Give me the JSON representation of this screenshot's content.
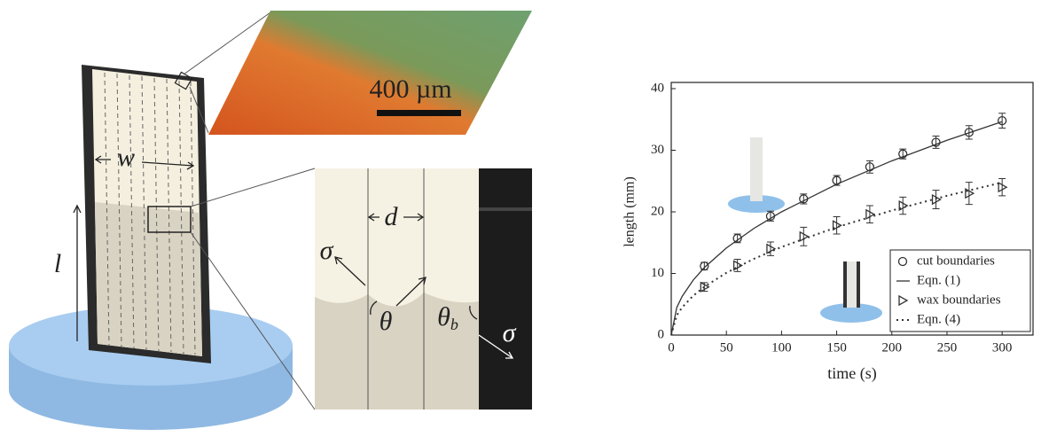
{
  "illustration": {
    "scale_bar": "400 µm",
    "w": "w",
    "l": "l",
    "d": "d",
    "sigma": [
      "σ",
      "σ"
    ],
    "theta": "θ",
    "theta_b": {
      "symbol": "θ",
      "subscript": "b"
    }
  },
  "chart_data": {
    "type": "line",
    "xlabel": "time (s)",
    "ylabel": "length (mm)",
    "xlim": [
      0,
      328
    ],
    "ylim": [
      0,
      40
    ],
    "xticks": [
      0,
      50,
      100,
      150,
      200,
      250,
      300
    ],
    "yticks": [
      0,
      10,
      20,
      30,
      40
    ],
    "legend": "lower right",
    "series": [
      {
        "name": "cut boundaries",
        "color": "#333333",
        "marker": "circle",
        "x": [
          30,
          60,
          90,
          120,
          150,
          180,
          210,
          240,
          270,
          300
        ],
        "values": [
          11.2,
          15.7,
          19.3,
          22.1,
          25.1,
          27.3,
          29.4,
          31.3,
          32.9,
          34.8
        ],
        "errors": [
          0.6,
          0.7,
          0.8,
          0.8,
          0.8,
          1.0,
          0.8,
          1.0,
          1.1,
          1.2
        ]
      },
      {
        "name": "Eqn. (1)",
        "color": "#333333",
        "linestyle": "solid",
        "x": [
          0,
          5,
          10,
          20,
          30,
          50,
          75,
          100,
          150,
          200,
          250,
          300
        ],
        "values": [
          0,
          4.47,
          6.32,
          8.94,
          10.95,
          14.14,
          17.32,
          20.0,
          24.49,
          28.28,
          31.62,
          34.64
        ]
      },
      {
        "name": "wax boundaries",
        "color": "#333333",
        "marker": "triangle-right",
        "x": [
          30,
          60,
          90,
          120,
          150,
          180,
          210,
          240,
          270,
          300
        ],
        "values": [
          7.8,
          11.3,
          14.0,
          16.0,
          17.8,
          19.6,
          21.0,
          22.0,
          23.0,
          24.0
        ],
        "errors": [
          0.7,
          1.0,
          1.1,
          1.5,
          1.4,
          1.4,
          1.4,
          1.5,
          1.8,
          1.4
        ]
      },
      {
        "name": "Eqn. (4)",
        "color": "#333333",
        "linestyle": "dotted",
        "x": [
          0,
          5,
          10,
          20,
          30,
          50,
          75,
          100,
          150,
          200,
          250,
          300
        ],
        "values": [
          0,
          3.2,
          4.52,
          6.4,
          7.83,
          10.11,
          12.38,
          14.3,
          17.51,
          20.22,
          22.61,
          24.77
        ]
      }
    ]
  }
}
